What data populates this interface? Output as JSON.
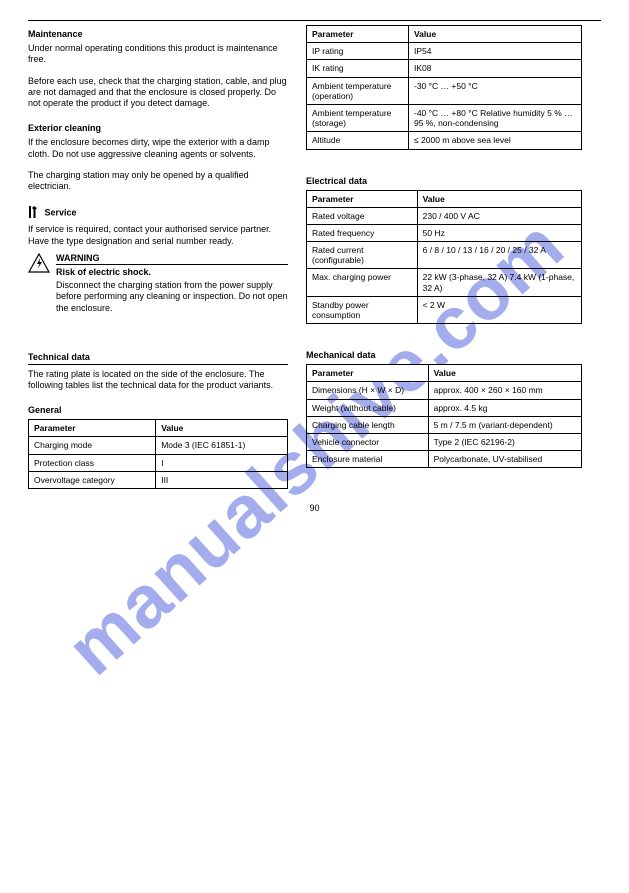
{
  "watermark": "manualshive.com",
  "page_number": "90",
  "left": {
    "maintenance": {
      "heading": "Maintenance",
      "p1": "Under normal operating conditions this product is maintenance free.",
      "p2": "Before each use, check that the charging station, cable, and plug are not damaged and that the enclosure is closed properly. Do not operate the product if you detect damage.",
      "wipe_heading": "Exterior cleaning",
      "wipe_p1": "If the enclosure becomes dirty, wipe the exterior with a damp cloth. Do not use aggressive cleaning agents or solvents.",
      "wipe_p2": "The charging station may only be opened by a qualified electrician.",
      "service_heading_icon": "tools-icon",
      "service_heading": "Service",
      "service_p": "If service is required, contact your authorised service partner. Have the type designation and serial number ready."
    },
    "warning": {
      "icon": "shock-hazard-icon",
      "title": "WARNING",
      "line1": "Risk of electric shock.",
      "line2": "Disconnect the charging station from the power supply before performing any cleaning or inspection. Do not open the enclosure."
    },
    "techdata": {
      "heading": "Technical data",
      "intro": "The rating plate is located on the side of the enclosure. The following tables list the technical data for the product variants.",
      "general_heading": "General",
      "general_table": {
        "headers": [
          "Parameter",
          "Value"
        ],
        "rows": [
          [
            "Charging mode",
            "Mode 3 (IEC 61851-1)"
          ],
          [
            "Protection class",
            "I"
          ],
          [
            "Overvoltage category",
            "III"
          ]
        ]
      }
    }
  },
  "right": {
    "tables": [
      {
        "headers": [
          "Parameter",
          "Value"
        ],
        "rows": [
          [
            "IP rating",
            "IP54"
          ],
          [
            "IK rating",
            "IK08"
          ],
          [
            "Ambient temperature (operation)",
            "-30 °C … +50 °C"
          ],
          [
            "Ambient temperature (storage)",
            "-40 °C … +80 °C\nRelative humidity 5 % … 95 %, non-condensing"
          ],
          [
            "Altitude",
            "≤ 2000 m above sea level"
          ]
        ]
      },
      {
        "title": "Electrical data",
        "headers": [
          "Parameter",
          "Value"
        ],
        "rows": [
          [
            "Rated voltage",
            "230 / 400 V AC"
          ],
          [
            "Rated frequency",
            "50 Hz"
          ],
          [
            "Rated current (configurable)",
            "6 / 8 / 10 / 13 / 16 / 20 / 25 / 32 A"
          ],
          [
            "Max. charging power",
            "22 kW (3-phase, 32 A)\n7.4 kW (1-phase, 32 A)"
          ],
          [
            "Standby power consumption",
            "< 2 W"
          ]
        ]
      },
      {
        "title": "Mechanical data",
        "headers": [
          "Parameter",
          "Value"
        ],
        "rows": [
          [
            "Dimensions (H × W × D)",
            "approx. 400 × 260 × 160 mm"
          ],
          [
            "Weight (without cable)",
            "approx. 4.5 kg"
          ],
          [
            "Charging cable length",
            "5 m / 7.5 m (variant-dependent)"
          ],
          [
            "Vehicle connector",
            "Type 2 (IEC 62196-2)"
          ],
          [
            "Enclosure material",
            "Polycarbonate, UV-stabilised"
          ]
        ]
      }
    ]
  }
}
